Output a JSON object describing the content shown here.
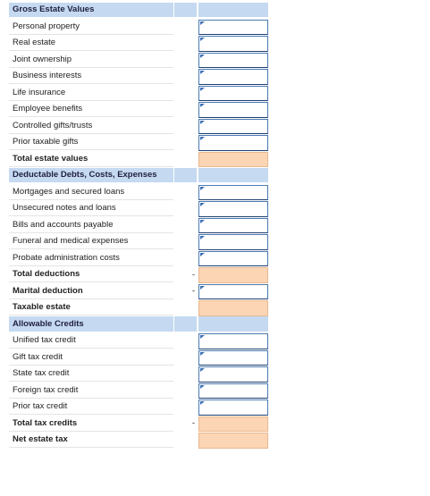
{
  "sections": [
    {
      "title": "Gross Estate Values",
      "rows": [
        {
          "label": "Personal property",
          "field": "input"
        },
        {
          "label": "Real estate",
          "field": "input"
        },
        {
          "label": "Joint ownership",
          "field": "input"
        },
        {
          "label": "Business interests",
          "field": "input"
        },
        {
          "label": "Life insurance",
          "field": "input"
        },
        {
          "label": "Employee benefits",
          "field": "input"
        },
        {
          "label": "Controlled gifts/trusts",
          "field": "input"
        },
        {
          "label": "Prior taxable gifts",
          "field": "input"
        },
        {
          "label": "Total estate values",
          "field": "total",
          "bold": true
        }
      ]
    },
    {
      "title": "Deductable Debts, Costs, Expenses",
      "rows": [
        {
          "label": "Mortgages and secured loans",
          "field": "input"
        },
        {
          "label": "Unsecured notes and loans",
          "field": "input"
        },
        {
          "label": "Bills and accounts payable",
          "field": "input"
        },
        {
          "label": "Funeral and medical expenses",
          "field": "input"
        },
        {
          "label": "Probate administration costs",
          "field": "input"
        },
        {
          "label": "Total deductions",
          "field": "total",
          "bold": true,
          "sign": "-"
        },
        {
          "label": "Marital deduction",
          "field": "input",
          "bold": true,
          "sign": "-"
        },
        {
          "label": "Taxable estate",
          "field": "total",
          "bold": true
        }
      ]
    },
    {
      "title": "Allowable Credits",
      "rows": [
        {
          "label": "Unified tax credit",
          "field": "input"
        },
        {
          "label": "Gift tax credit",
          "field": "input"
        },
        {
          "label": "State tax credit",
          "field": "input"
        },
        {
          "label": "Foreign tax credit",
          "field": "input"
        },
        {
          "label": "Prior tax credit",
          "field": "input"
        },
        {
          "label": "Total tax credits",
          "field": "total",
          "bold": true,
          "sign": "-"
        },
        {
          "label": "Net estate tax",
          "field": "total",
          "bold": true
        }
      ]
    }
  ]
}
